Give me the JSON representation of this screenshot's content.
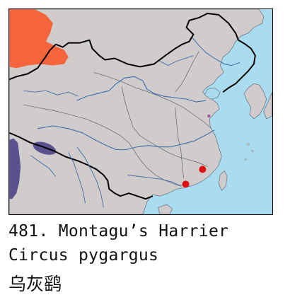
{
  "caption": {
    "entry_number": "481.",
    "common_name": "Montagu’s Harrier",
    "scientific_name": "Circus pygargus",
    "chinese_name": "乌灰鹞"
  },
  "map": {
    "colors": {
      "sea": "#aadcf0",
      "land": "#d1cccc",
      "breeding_range": "#f4653b",
      "winter_range": "#5a5190",
      "record_point": "#dd1111",
      "border": "#000000",
      "river": "#3f6aa8"
    },
    "legend_semantics": [
      "breeding-range",
      "wintering-range",
      "record-point"
    ]
  }
}
